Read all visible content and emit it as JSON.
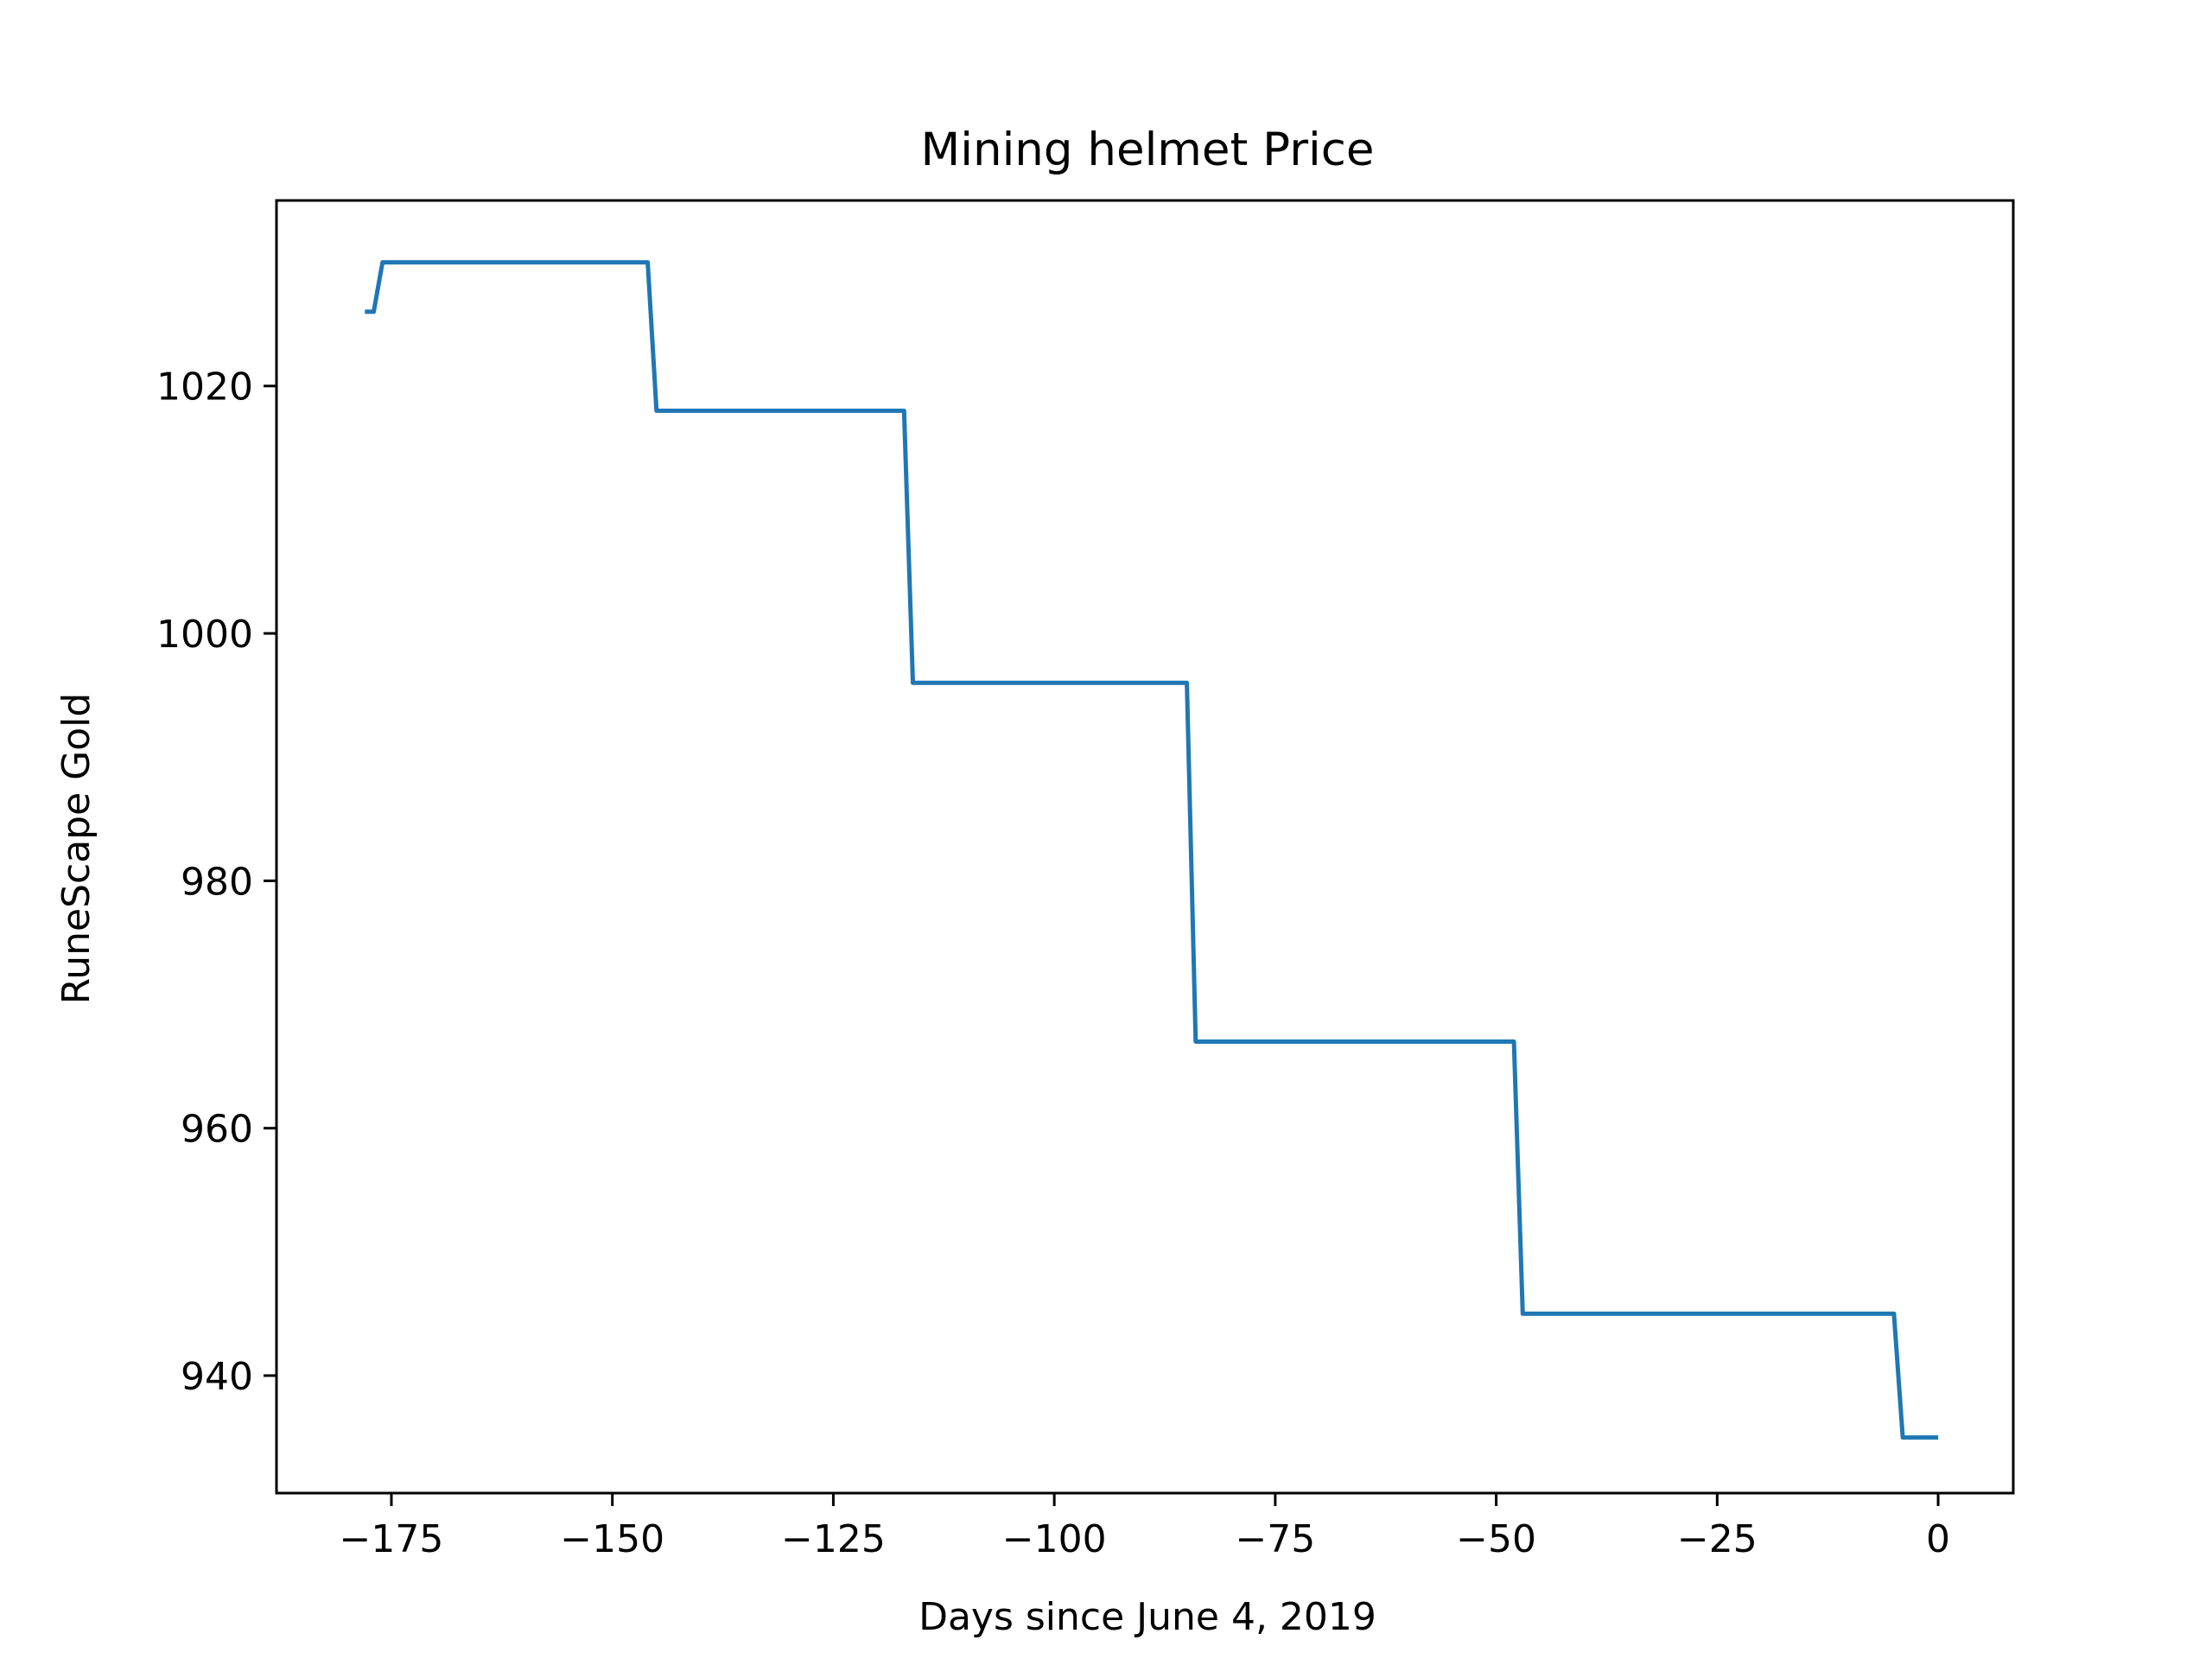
{
  "chart_data": {
    "type": "line",
    "title": "Mining helmet Price",
    "xlabel": "Days since June 4, 2019",
    "ylabel": "RuneScape Gold",
    "xlim": [
      -188,
      8.5
    ],
    "ylim": [
      930.5,
      1035
    ],
    "xticks": [
      -175,
      -150,
      -125,
      -100,
      -75,
      -50,
      -25,
      0
    ],
    "yticks": [
      940,
      960,
      980,
      1000,
      1020
    ],
    "grid": false,
    "line_color": "#1f77b4",
    "series": [
      {
        "x": [
          -178,
          -177,
          -176,
          -146,
          -145,
          -117,
          -116,
          -85,
          -84,
          -48,
          -47,
          -5,
          -4,
          0
        ],
        "values": [
          1026,
          1026,
          1030,
          1030,
          1018,
          1018,
          996,
          996,
          967,
          967,
          945,
          945,
          935,
          935
        ]
      }
    ]
  }
}
